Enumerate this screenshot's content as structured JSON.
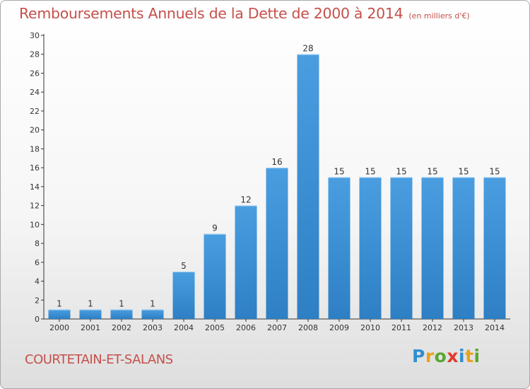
{
  "title": "Remboursements Annuels de la Dette de 2000 à 2014",
  "subtitle": "(en milliers d'€)",
  "commune": "COURTETAIN-ET-SALANS",
  "logo": {
    "letters": [
      "P",
      "r",
      "o",
      "x",
      "i",
      "t",
      "i"
    ],
    "colors": [
      "#2f8fd0",
      "#e8a21b",
      "#5aa632",
      "#e33a2b",
      "#2f8fd0",
      "#e8a21b",
      "#5aa632"
    ]
  },
  "colors": {
    "bar": "#4a9ee0",
    "bar_dark": "#2e7fc4",
    "text": "#c5504b"
  },
  "chart_data": {
    "type": "bar",
    "categories": [
      "2000",
      "2001",
      "2002",
      "2003",
      "2004",
      "2005",
      "2006",
      "2007",
      "2008",
      "2009",
      "2010",
      "2011",
      "2012",
      "2013",
      "2014"
    ],
    "values": [
      1,
      1,
      1,
      1,
      5,
      9,
      12,
      16,
      28,
      15,
      15,
      15,
      15,
      15,
      15
    ],
    "title": "Remboursements Annuels de la Dette de 2000 à 2014",
    "ylim": [
      0,
      30
    ],
    "yticks": [
      0,
      2,
      4,
      6,
      8,
      10,
      12,
      14,
      16,
      18,
      20,
      22,
      24,
      26,
      28,
      30
    ],
    "grid": false
  }
}
